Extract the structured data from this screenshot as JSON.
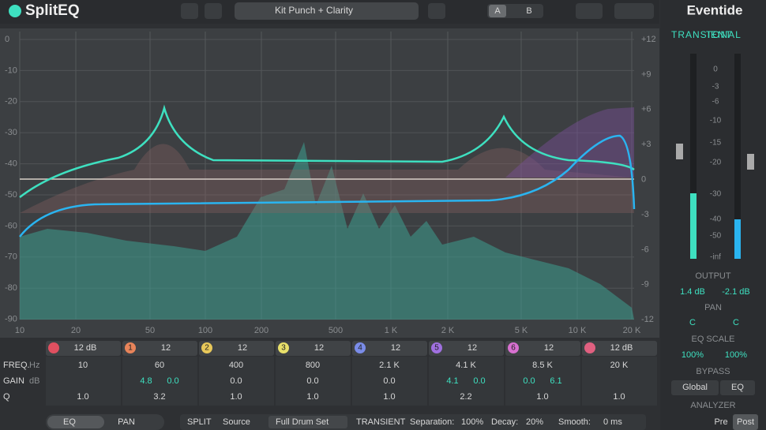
{
  "header": {
    "logo": "SplitEQ",
    "preset": "Kit Punch + Clarity",
    "ab": [
      "A",
      "B"
    ],
    "brand": "Eventide"
  },
  "graph": {
    "db_labels": [
      "0",
      "-10",
      "-20",
      "-30",
      "-40",
      "-50",
      "-60",
      "-70",
      "-80",
      "-90"
    ],
    "gain_labels": [
      "+12",
      "+9",
      "+6",
      "+3",
      "0",
      "-3",
      "-6",
      "-9",
      "-12"
    ],
    "freq_labels": [
      "10",
      "20",
      "50",
      "100",
      "200",
      "500",
      "1 K",
      "2 K",
      "5 K",
      "10 K",
      "20 K"
    ]
  },
  "bands": {
    "row_labels": [
      {
        "name": "FREQ.",
        "unit": "Hz"
      },
      {
        "name": "GAIN",
        "unit": "dB"
      },
      {
        "name": "Q"
      }
    ],
    "items": [
      {
        "slope": "12 dB",
        "freq": "10",
        "q": "1.0"
      },
      {
        "number": "1",
        "slope": "12",
        "freq": "60",
        "gain": [
          "4.8",
          "0.0"
        ],
        "q": "3.2"
      },
      {
        "number": "2",
        "slope": "12",
        "freq": "400",
        "gain": [
          "0.0"
        ],
        "q": "1.0"
      },
      {
        "number": "3",
        "slope": "12",
        "freq": "800",
        "gain": [
          "0.0"
        ],
        "q": "1.0"
      },
      {
        "number": "4",
        "slope": "12",
        "freq": "2.1 K",
        "gain": [
          "0.0"
        ],
        "q": "1.0"
      },
      {
        "number": "5",
        "slope": "12",
        "freq": "4.1 K",
        "gain": [
          "4.1",
          "0.0"
        ],
        "q": "2.2"
      },
      {
        "number": "6",
        "slope": "12",
        "freq": "8.5 K",
        "gain": [
          "0.0",
          "6.1"
        ],
        "q": "1.0"
      },
      {
        "slope": "12 dB",
        "freq": "20 K",
        "q": "1.0"
      }
    ]
  },
  "side": {
    "modes": [
      "TRANSIENT",
      "TONAL"
    ],
    "meter_scale": [
      "0",
      "-3",
      "-6",
      "-10",
      "-15",
      "-20",
      "-30",
      "-40",
      "-50",
      "-inf"
    ],
    "output_label": "OUTPUT",
    "output": [
      "1.4 dB",
      "-2.1 dB"
    ],
    "pan_label": "PAN",
    "pan": [
      "C",
      "C"
    ],
    "eq_scale_label": "EQ SCALE",
    "eq_scale": [
      "100%",
      "100%"
    ],
    "bypass_label": "BYPASS",
    "bypass": [
      "Global",
      "EQ"
    ],
    "analyzer_label": "ANALYZER",
    "analyzer": [
      "Pre",
      "Post"
    ]
  },
  "footer": {
    "tabs": [
      "EQ",
      "PAN"
    ],
    "split": "SPLIT",
    "source_label": "Source",
    "source": "Full Drum Set",
    "mode": "TRANSIENT",
    "separation_label": "Separation:",
    "separation": "100%",
    "decay_label": "Decay:",
    "decay": "20%",
    "smooth_label": "Smooth:",
    "smooth": "0 ms"
  }
}
